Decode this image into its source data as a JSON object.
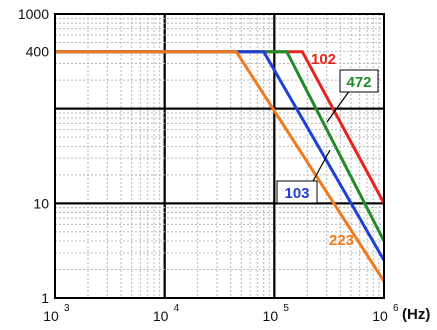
{
  "chart_data": {
    "type": "line",
    "x_scale": "log",
    "y_scale": "log",
    "xlim": [
      1000,
      1000000
    ],
    "ylim": [
      1,
      1000
    ],
    "grid": true,
    "y_tick_labels": [
      "1000",
      "400",
      "10",
      "1"
    ],
    "y_tick_values": [
      1000,
      400,
      10,
      1
    ],
    "x_ticks": [
      {
        "value": 1000,
        "base": "10",
        "exp": "3"
      },
      {
        "value": 10000,
        "base": "10",
        "exp": "4"
      },
      {
        "value": 100000,
        "base": "10",
        "exp": "5"
      },
      {
        "value": 1000000,
        "base": "10",
        "exp": "6"
      }
    ],
    "x_unit_label": "(Hz)",
    "series": [
      {
        "name": "102",
        "color": "#e8231f",
        "x": [
          1000,
          180000,
          1000000
        ],
        "y": [
          400,
          400,
          10
        ]
      },
      {
        "name": "472",
        "color": "#1e8c2b",
        "x": [
          1000,
          130000,
          1000000
        ],
        "y": [
          400,
          400,
          4
        ]
      },
      {
        "name": "103",
        "color": "#1f3fd6",
        "x": [
          1000,
          80000,
          1000000
        ],
        "y": [
          400,
          400,
          2.5
        ]
      },
      {
        "name": "223",
        "color": "#f07a1d",
        "x": [
          1000,
          45000,
          1000000
        ],
        "y": [
          400,
          400,
          1.5
        ]
      }
    ]
  }
}
